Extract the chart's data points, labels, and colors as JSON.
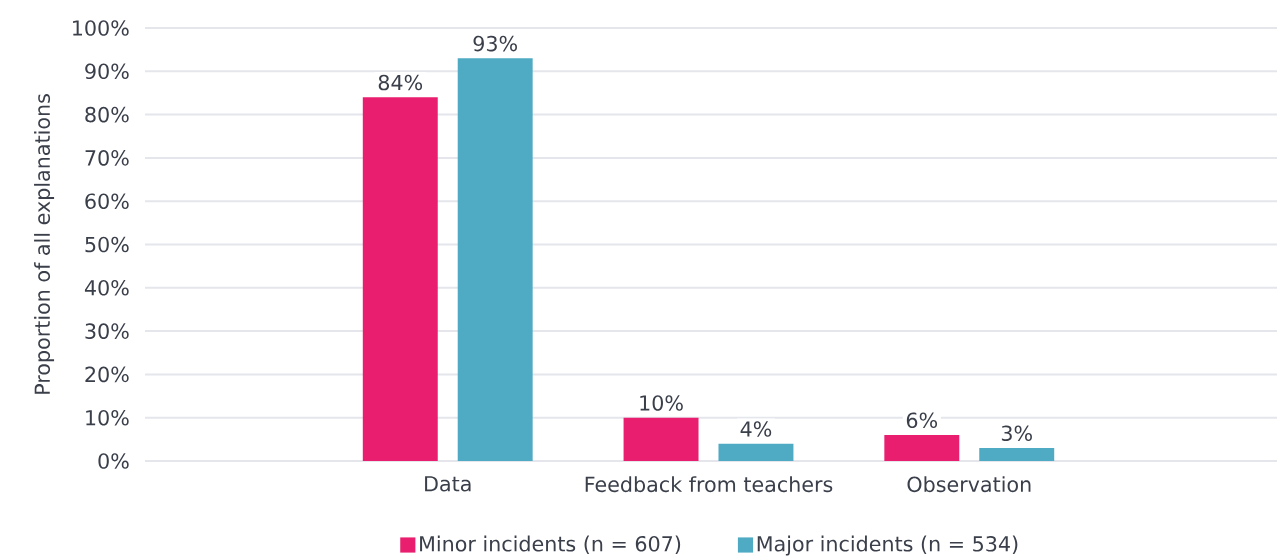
{
  "chart_data": {
    "type": "bar",
    "ylabel": "Proportion of all explanations",
    "categories": [
      "Data",
      "Feedback from teachers",
      "Observation"
    ],
    "series": [
      {
        "name": "Minor incidents (n = 607)",
        "color": "#e91e6e",
        "values": [
          84,
          10,
          6
        ],
        "value_labels": [
          "84%",
          "10%",
          "6%"
        ]
      },
      {
        "name": "Major incidents (n = 534)",
        "color": "#4faac4",
        "values": [
          93,
          4,
          3
        ],
        "value_labels": [
          "93%",
          "4%",
          "3%"
        ]
      }
    ],
    "ylim": [
      0,
      100
    ],
    "yticks": [
      {
        "value": 0,
        "label": "0%"
      },
      {
        "value": 10,
        "label": "10%"
      },
      {
        "value": 20,
        "label": "20%"
      },
      {
        "value": 30,
        "label": "30%"
      },
      {
        "value": 40,
        "label": "40%"
      },
      {
        "value": 50,
        "label": "50%"
      },
      {
        "value": 60,
        "label": "60%"
      },
      {
        "value": 70,
        "label": "70%"
      },
      {
        "value": 80,
        "label": "80%"
      },
      {
        "value": 90,
        "label": "90%"
      },
      {
        "value": 100,
        "label": "100%"
      }
    ],
    "grid": "y",
    "legend": "bottom"
  }
}
